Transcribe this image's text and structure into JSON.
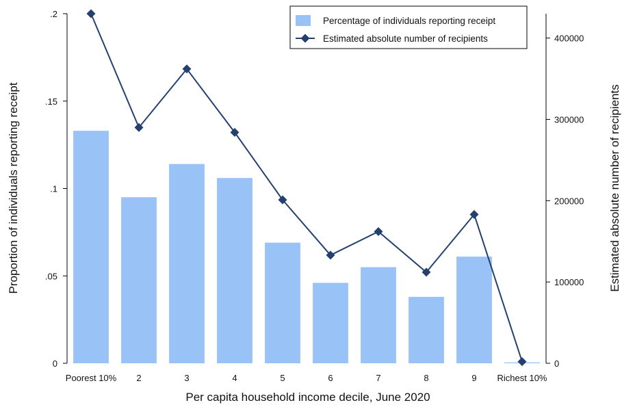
{
  "chart_data": {
    "type": "bar",
    "categories": [
      "Poorest 10%",
      "2",
      "3",
      "4",
      "5",
      "6",
      "7",
      "8",
      "9",
      "Richest 10%"
    ],
    "series": [
      {
        "name": "Percentage of individuals reporting receipt",
        "type": "bar",
        "axis": "left",
        "values": [
          0.133,
          0.095,
          0.114,
          0.106,
          0.069,
          0.046,
          0.055,
          0.038,
          0.061,
          0.0005
        ]
      },
      {
        "name": "Estimated absolute number of recipients",
        "type": "line",
        "axis": "right",
        "values": [
          430000,
          290000,
          362000,
          284000,
          201000,
          133000,
          162000,
          112000,
          183000,
          2000
        ]
      }
    ],
    "xlabel": "Per capita household income decile, June 2020",
    "ylabel": "Proportion of individuals reporting receipt",
    "ylabel_right": "Estimated absolute number of recipients",
    "ylim": [
      0,
      0.2
    ],
    "ylim_right": [
      0,
      430000
    ],
    "yticks": [
      0,
      0.05,
      0.1,
      0.15,
      0.2
    ],
    "ytick_labels": [
      "0",
      ".05",
      ".1",
      ".15",
      ".2"
    ],
    "yticks_right": [
      0,
      100000,
      200000,
      300000,
      400000
    ],
    "ytick_labels_right": [
      "0",
      "100000",
      "200000",
      "300000",
      "400000"
    ],
    "grid": false,
    "legend_position": "top-right",
    "colors": {
      "bar": "#99c2f7",
      "line": "#23406e",
      "marker": "#23406e"
    }
  }
}
